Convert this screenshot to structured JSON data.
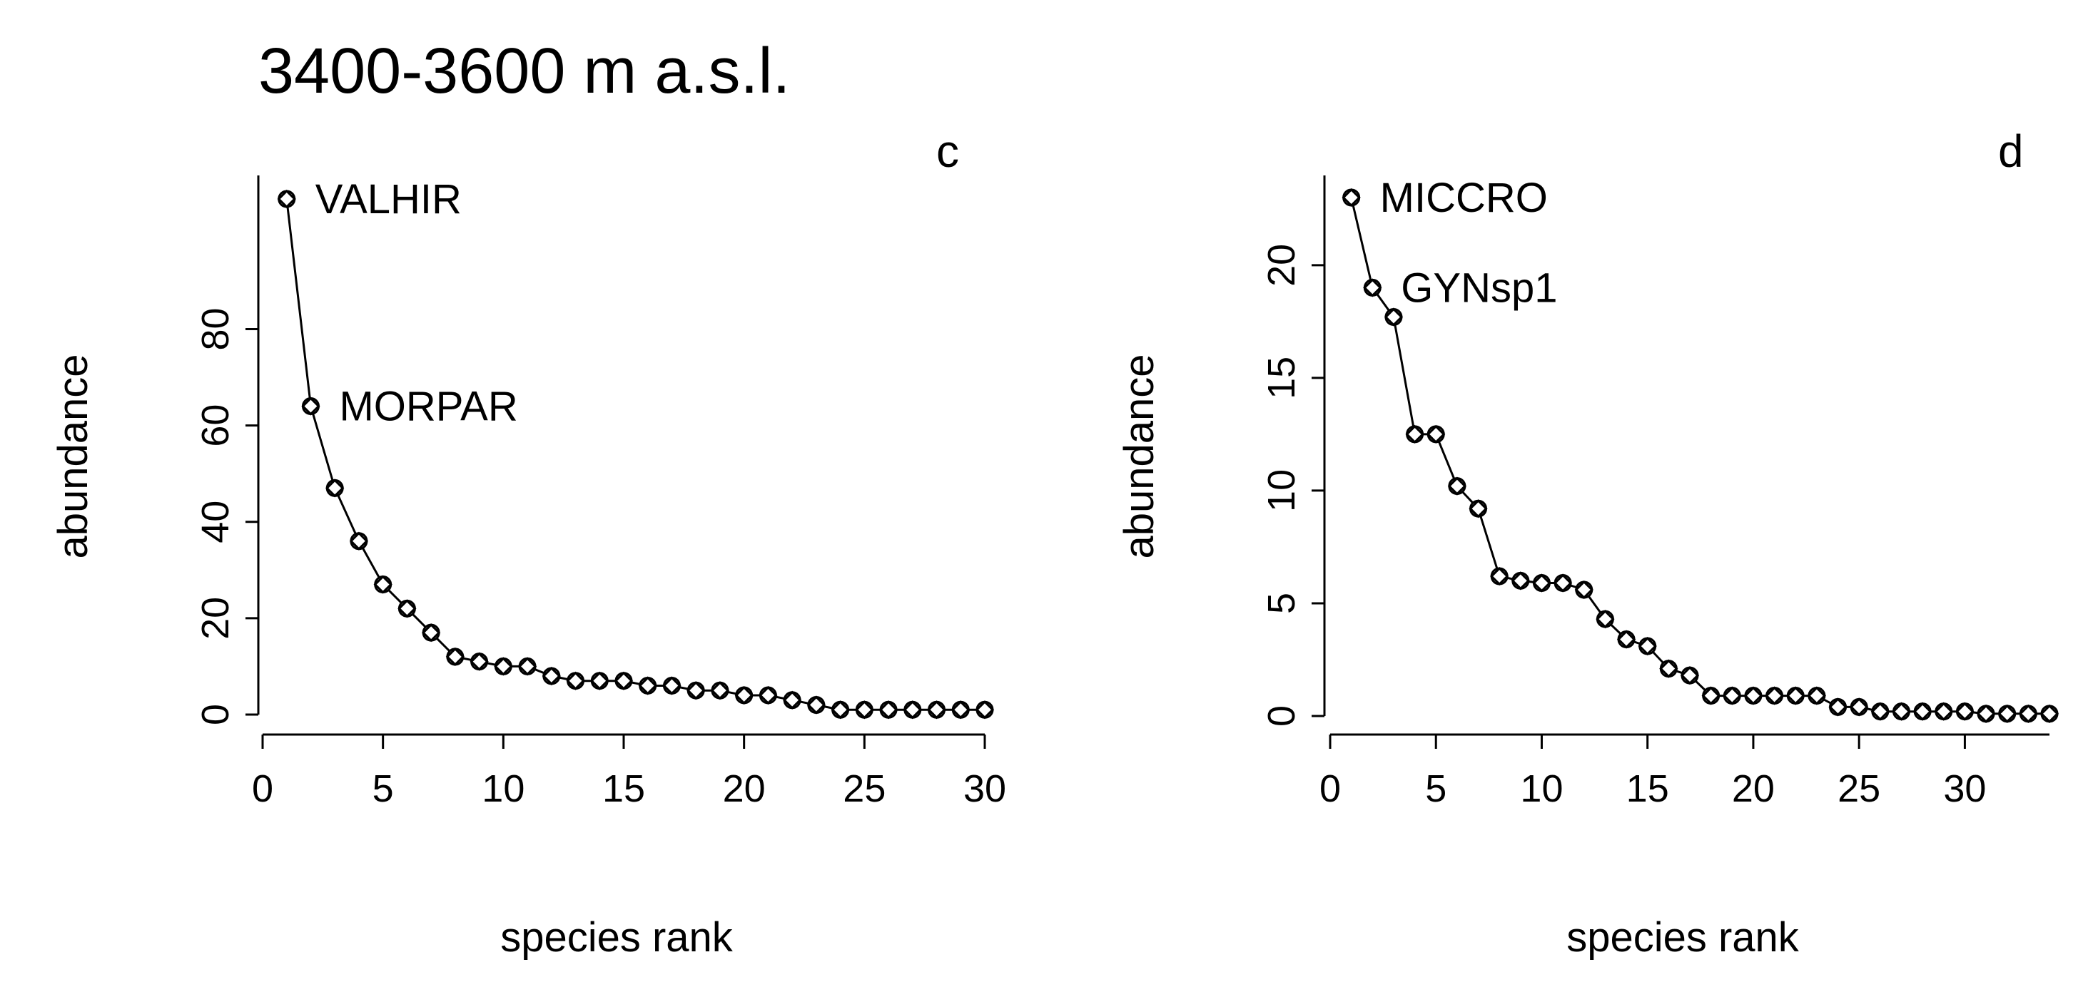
{
  "figure": {
    "title": "3400-3600 m a.s.l."
  },
  "chart_data": [
    {
      "type": "line",
      "panel": "c",
      "xlabel": "species rank",
      "ylabel": "abundance",
      "xlim": [
        0,
        30
      ],
      "ylim": [
        0,
        107
      ],
      "xticks": [
        0,
        5,
        10,
        15,
        20,
        25,
        30
      ],
      "yticks": [
        0,
        20,
        40,
        60,
        80
      ],
      "grid": false,
      "x": [
        1,
        2,
        3,
        4,
        5,
        6,
        7,
        8,
        9,
        10,
        11,
        12,
        13,
        14,
        15,
        16,
        17,
        18,
        19,
        20,
        21,
        22,
        23,
        24,
        25,
        26,
        27,
        28,
        29,
        30
      ],
      "values": [
        107,
        64,
        47,
        36,
        27,
        22,
        17,
        12,
        11,
        10,
        10,
        8,
        7,
        7,
        7,
        6,
        6,
        5,
        5,
        4,
        4,
        3,
        2,
        1,
        1,
        1,
        1,
        1,
        1,
        1
      ],
      "marker": "diamond-circle",
      "annotations": [
        {
          "label": "VALHIR",
          "x": 1,
          "y": 107
        },
        {
          "label": "MORPAR",
          "x": 2,
          "y": 64
        }
      ]
    },
    {
      "type": "line",
      "panel": "d",
      "xlabel": "species rank",
      "ylabel": "abundance",
      "xlim": [
        0,
        34
      ],
      "ylim": [
        0,
        23
      ],
      "xticks": [
        0,
        5,
        10,
        15,
        20,
        25,
        30
      ],
      "yticks": [
        0,
        5,
        10,
        15,
        20
      ],
      "grid": false,
      "x": [
        1,
        2,
        3,
        4,
        5,
        6,
        7,
        8,
        9,
        10,
        11,
        12,
        13,
        14,
        15,
        16,
        17,
        18,
        19,
        20,
        21,
        22,
        23,
        24,
        25,
        26,
        27,
        28,
        29,
        30,
        31,
        32,
        33,
        34
      ],
      "values": [
        23,
        19,
        17.7,
        12.5,
        12.5,
        10.2,
        9.2,
        6.2,
        6,
        5.9,
        5.9,
        5.6,
        4.3,
        3.4,
        3.1,
        2.1,
        1.8,
        0.9,
        0.9,
        0.9,
        0.9,
        0.9,
        0.9,
        0.4,
        0.4,
        0.2,
        0.2,
        0.2,
        0.2,
        0.2,
        0.1,
        0.1,
        0.1,
        0.1
      ],
      "marker": "diamond-circle",
      "annotations": [
        {
          "label": "MICCRO",
          "x": 1,
          "y": 23
        },
        {
          "label": "GYNsp1",
          "x": 2,
          "y": 19
        }
      ]
    }
  ]
}
